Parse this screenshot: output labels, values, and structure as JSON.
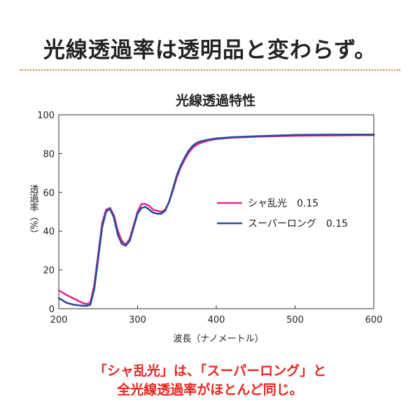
{
  "headline": "光線透過率は透明品と変わらず。",
  "caption": {
    "line1": "「シャ乱光」は、「スーパーロング」と",
    "line2": "全光線透過率がほとんど同じ。"
  },
  "colors": {
    "divider": "#e87a2e",
    "caption": "#e8261c"
  },
  "chart_data": {
    "type": "line",
    "title": "光線透過特性",
    "xlabel": "波長（ナノメートル）",
    "ylabel": "透過率（%）",
    "xlim": [
      200,
      600
    ],
    "ylim": [
      0,
      100
    ],
    "xticks": [
      200,
      300,
      400,
      500,
      600
    ],
    "yticks": [
      0,
      20,
      40,
      60,
      80,
      100
    ],
    "legend_position": "middle-right",
    "grid": false,
    "series": [
      {
        "name": "シャ乱光　0.15",
        "color": "#e8288a",
        "x": [
          200,
          210,
          220,
          230,
          235,
          240,
          245,
          250,
          255,
          260,
          265,
          270,
          275,
          280,
          285,
          290,
          295,
          300,
          305,
          310,
          315,
          320,
          325,
          330,
          335,
          340,
          345,
          350,
          355,
          360,
          365,
          370,
          375,
          380,
          390,
          400,
          420,
          450,
          500,
          550,
          600
        ],
        "y": [
          9.5,
          7,
          5,
          3,
          2.5,
          3,
          12,
          28,
          44,
          51,
          52,
          48,
          40,
          35,
          33,
          36,
          43,
          50,
          54,
          54,
          53,
          51,
          50.5,
          50,
          51,
          55,
          61,
          68,
          73,
          77,
          80.5,
          83,
          84.5,
          85.5,
          86.8,
          87.5,
          88.2,
          88.7,
          89.2,
          89.4,
          89.5
        ]
      },
      {
        "name": "スーパーロング　0.15",
        "color": "#2a4a9a",
        "x": [
          200,
          210,
          220,
          230,
          235,
          240,
          245,
          250,
          255,
          260,
          265,
          270,
          275,
          280,
          285,
          290,
          295,
          300,
          305,
          310,
          315,
          320,
          325,
          330,
          335,
          340,
          345,
          350,
          355,
          360,
          365,
          370,
          375,
          380,
          390,
          400,
          420,
          450,
          500,
          550,
          600
        ],
        "y": [
          5.5,
          3,
          2,
          1.5,
          1.5,
          2,
          10,
          26,
          42,
          50,
          51.5,
          47,
          38,
          33.5,
          32.5,
          35,
          42,
          49,
          52,
          52.5,
          51,
          49.5,
          49,
          49,
          50.5,
          55,
          62,
          69,
          74,
          78,
          81.5,
          84,
          85.5,
          86.3,
          87.2,
          87.8,
          88.4,
          88.9,
          89.6,
          89.8,
          89.8
        ]
      }
    ]
  }
}
